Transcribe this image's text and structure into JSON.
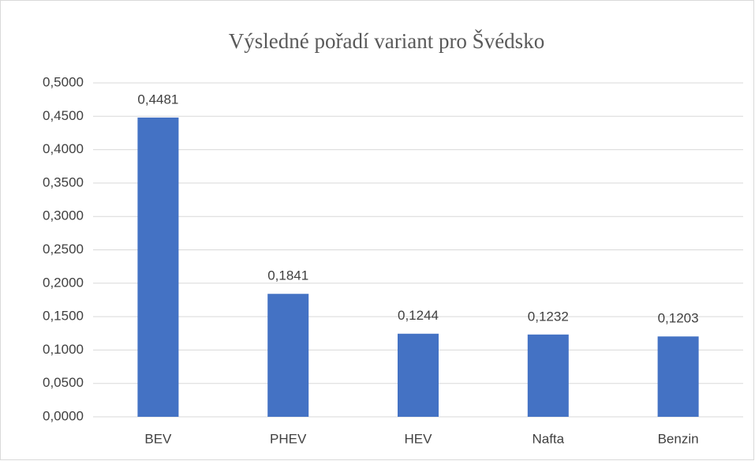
{
  "chart_data": {
    "type": "bar",
    "title": "Výsledné pořadí variant pro Švédsko",
    "categories": [
      "BEV",
      "PHEV",
      "HEV",
      "Nafta",
      "Benzin"
    ],
    "values": [
      0.4481,
      0.1841,
      0.1244,
      0.1232,
      0.1203
    ],
    "value_labels": [
      "0,4481",
      "0,1841",
      "0,1244",
      "0,1232",
      "0,1203"
    ],
    "color": "#4472c4",
    "ylim": [
      0,
      0.5
    ],
    "yticks": [
      {
        "value": 0,
        "label": "0,0000"
      },
      {
        "value": 0.05,
        "label": "0,0500"
      },
      {
        "value": 0.1,
        "label": "0,1000"
      },
      {
        "value": 0.15,
        "label": "0,1500"
      },
      {
        "value": 0.2,
        "label": "0,2000"
      },
      {
        "value": 0.25,
        "label": "0,2500"
      },
      {
        "value": 0.3,
        "label": "0,3000"
      },
      {
        "value": 0.35,
        "label": "0,3500"
      },
      {
        "value": 0.4,
        "label": "0,4000"
      },
      {
        "value": 0.45,
        "label": "0,4500"
      },
      {
        "value": 0.5,
        "label": "0,5000"
      }
    ],
    "grid": true
  }
}
